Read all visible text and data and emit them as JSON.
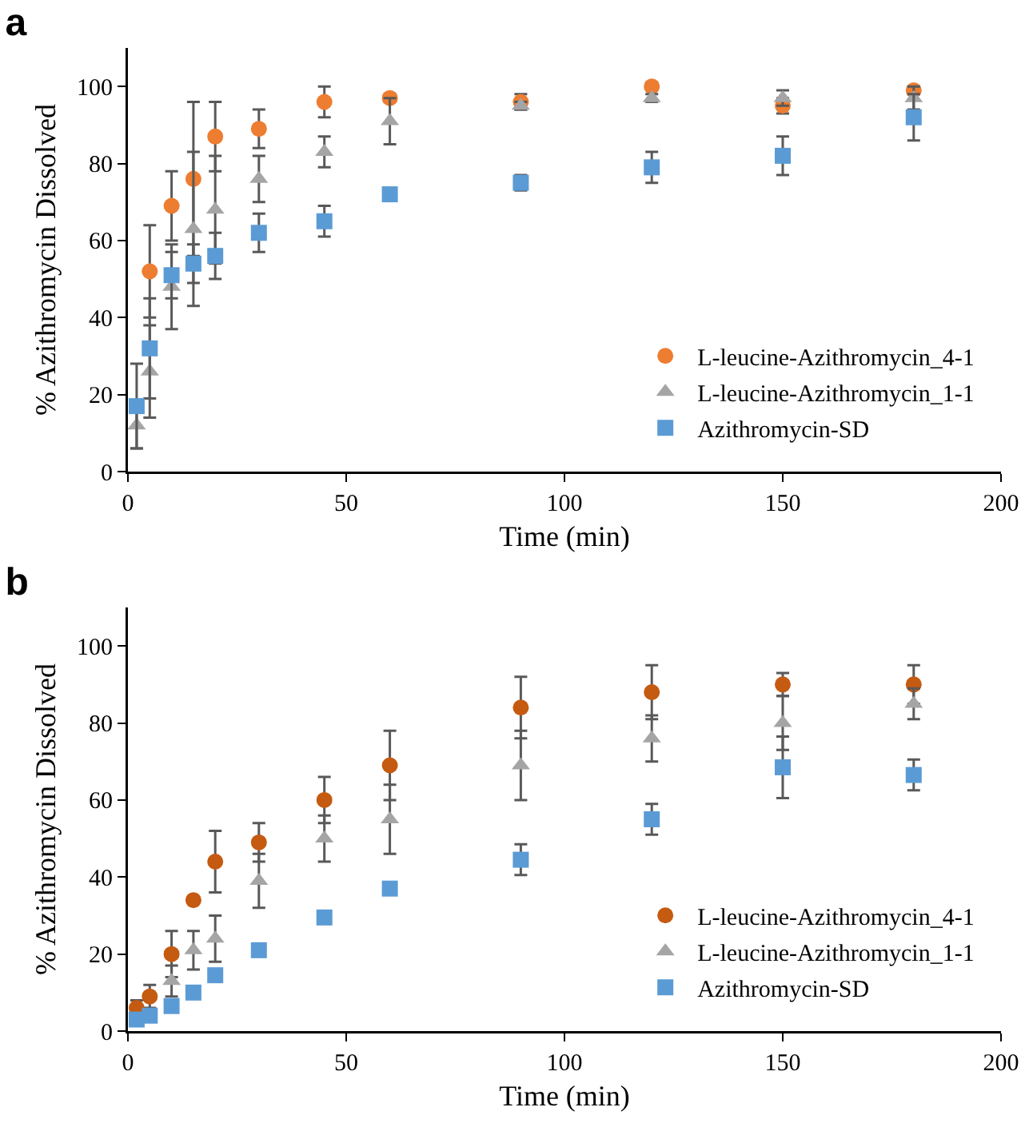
{
  "chart_data": [
    {
      "type": "scatter",
      "title": "a",
      "xlabel": "Time (min)",
      "ylabel": "% Azithromycin Dissolved",
      "x": [
        2,
        5,
        10,
        15,
        20,
        30,
        45,
        60,
        90,
        120,
        150,
        180
      ],
      "xlim": [
        0,
        200
      ],
      "xticks": [
        0,
        50,
        100,
        150,
        200
      ],
      "ylim": [
        0,
        110
      ],
      "yticks": [
        0,
        20,
        40,
        60,
        80,
        100
      ],
      "grid": false,
      "legend": "bottom right",
      "series": [
        {
          "name": "L-leucine-Azithromycin_4-1",
          "color": "#ed7d31",
          "marker": "circle",
          "values": [
            null,
            52,
            69,
            76,
            87,
            89,
            96,
            97,
            96,
            100,
            95,
            99
          ],
          "errors": [
            null,
            12,
            9,
            20,
            9,
            5,
            4,
            1,
            2,
            1,
            2,
            1
          ]
        },
        {
          "name": "L-leucine-Azithromycin_1-1",
          "color": "#a5a5a5",
          "marker": "triangle",
          "values": [
            12,
            26,
            48,
            63,
            68,
            76,
            83,
            91,
            95,
            97,
            97,
            97
          ],
          "errors": [
            6,
            12,
            11,
            20,
            14,
            6,
            4,
            6,
            1,
            1,
            2,
            3
          ]
        },
        {
          "name": "Azithromycin-SD",
          "color": "#5b9bd5",
          "marker": "square",
          "values": [
            17,
            32,
            51,
            54,
            56,
            62,
            65,
            72,
            75,
            79,
            82,
            92
          ],
          "errors": [
            11,
            13,
            6,
            5,
            6,
            5,
            4,
            null,
            2,
            4,
            5,
            6
          ]
        }
      ]
    },
    {
      "type": "scatter",
      "title": "b",
      "xlabel": "Time (min)",
      "ylabel": "% Azithromycin Dissolved",
      "x": [
        2,
        5,
        10,
        15,
        20,
        30,
        45,
        60,
        90,
        120,
        150,
        180
      ],
      "xlim": [
        0,
        200
      ],
      "xticks": [
        0,
        50,
        100,
        150,
        200
      ],
      "ylim": [
        0,
        110
      ],
      "yticks": [
        0,
        20,
        40,
        60,
        80,
        100
      ],
      "grid": false,
      "legend": "bottom right",
      "series": [
        {
          "name": "L-leucine-Azithromycin_4-1",
          "color": "#c55a11",
          "marker": "circle",
          "values": [
            6,
            9,
            20,
            34,
            44,
            49,
            60,
            69,
            84,
            88,
            90,
            90
          ],
          "errors": [
            2,
            3,
            6,
            null,
            8,
            5,
            6,
            9,
            8,
            7,
            3,
            5
          ]
        },
        {
          "name": "L-leucine-Azithromycin_1-1",
          "color": "#a5a5a5",
          "marker": "triangle",
          "values": [
            null,
            null,
            13,
            21,
            24,
            39,
            50,
            55,
            69,
            76,
            80,
            85
          ],
          "errors": [
            null,
            null,
            4,
            5,
            6,
            7,
            6,
            9,
            9,
            6,
            7,
            4
          ]
        },
        {
          "name": "Azithromycin-SD",
          "color": "#5b9bd5",
          "marker": "square",
          "values": [
            3,
            4,
            6.5,
            10,
            14.5,
            21,
            29.5,
            37,
            44.5,
            55,
            68.5,
            66.5
          ],
          "errors": [
            null,
            null,
            null,
            null,
            null,
            null,
            null,
            null,
            4,
            4,
            8,
            4
          ]
        }
      ]
    }
  ]
}
